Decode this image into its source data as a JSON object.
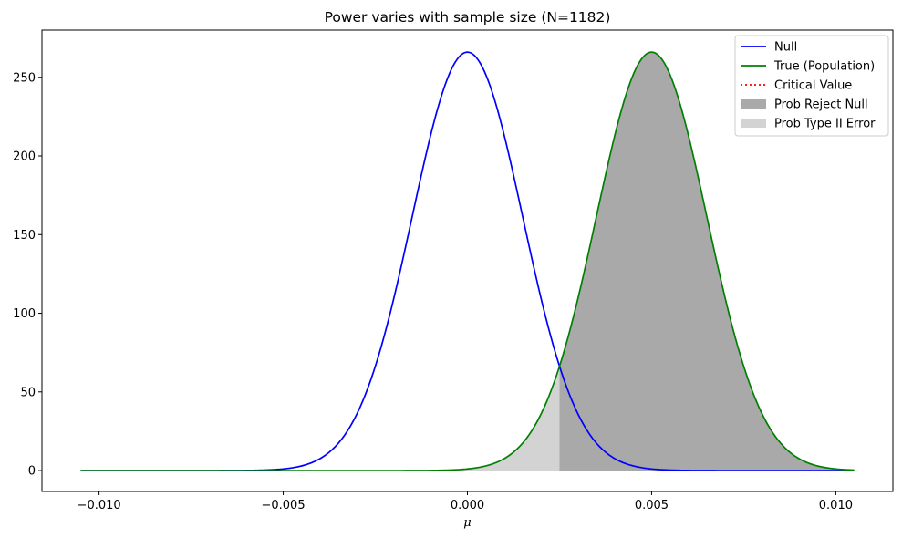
{
  "chart_data": {
    "type": "line",
    "title": "Power varies with sample size (N=1182)",
    "xlabel": "μ",
    "ylabel": "",
    "xlim": [
      -0.01155,
      0.01155
    ],
    "ylim": [
      -13.3,
      280
    ],
    "x_range": [
      -0.0105,
      0.0105
    ],
    "x_ticks": [
      -0.01,
      -0.005,
      0.0,
      0.005,
      0.01
    ],
    "x_tick_labels": [
      "−0.010",
      "−0.005",
      "0.000",
      "0.005",
      "0.010"
    ],
    "y_ticks": [
      0,
      50,
      100,
      150,
      200,
      250
    ],
    "y_tick_labels": [
      "0",
      "50",
      "100",
      "150",
      "200",
      "250"
    ],
    "critical_value": 0.0025,
    "series": [
      {
        "name": "Null",
        "kind": "normal_pdf",
        "mean": 0.0,
        "sd": 0.0015,
        "peak": 266.0,
        "color": "#0000ff"
      },
      {
        "name": "True (Population)",
        "kind": "normal_pdf",
        "mean": 0.005,
        "sd": 0.0015,
        "peak": 266.0,
        "color": "#008000"
      },
      {
        "name": "Critical Value",
        "kind": "vline",
        "x": 0.0025,
        "color": "#ff0000",
        "style": "dotted"
      }
    ],
    "fills": [
      {
        "name": "Prob Reject Null",
        "under": "True (Population)",
        "from": 0.0025,
        "to": 0.0105,
        "color": "#a9a9a9"
      },
      {
        "name": "Prob Type II Error",
        "under": "True (Population)",
        "from": -0.0105,
        "to": 0.0025,
        "color": "#d3d3d3"
      }
    ],
    "legend": {
      "placement": "top-right",
      "entries": [
        {
          "label": "Null",
          "type": "line",
          "color": "#0000ff"
        },
        {
          "label": "True (Population)",
          "type": "line",
          "color": "#008000"
        },
        {
          "label": "Critical Value",
          "type": "dotted",
          "color": "#ff0000"
        },
        {
          "label": "Prob Reject Null",
          "type": "patch",
          "color": "#a9a9a9"
        },
        {
          "label": "Prob Type II Error",
          "type": "patch",
          "color": "#d3d3d3"
        }
      ]
    },
    "grid": false
  }
}
